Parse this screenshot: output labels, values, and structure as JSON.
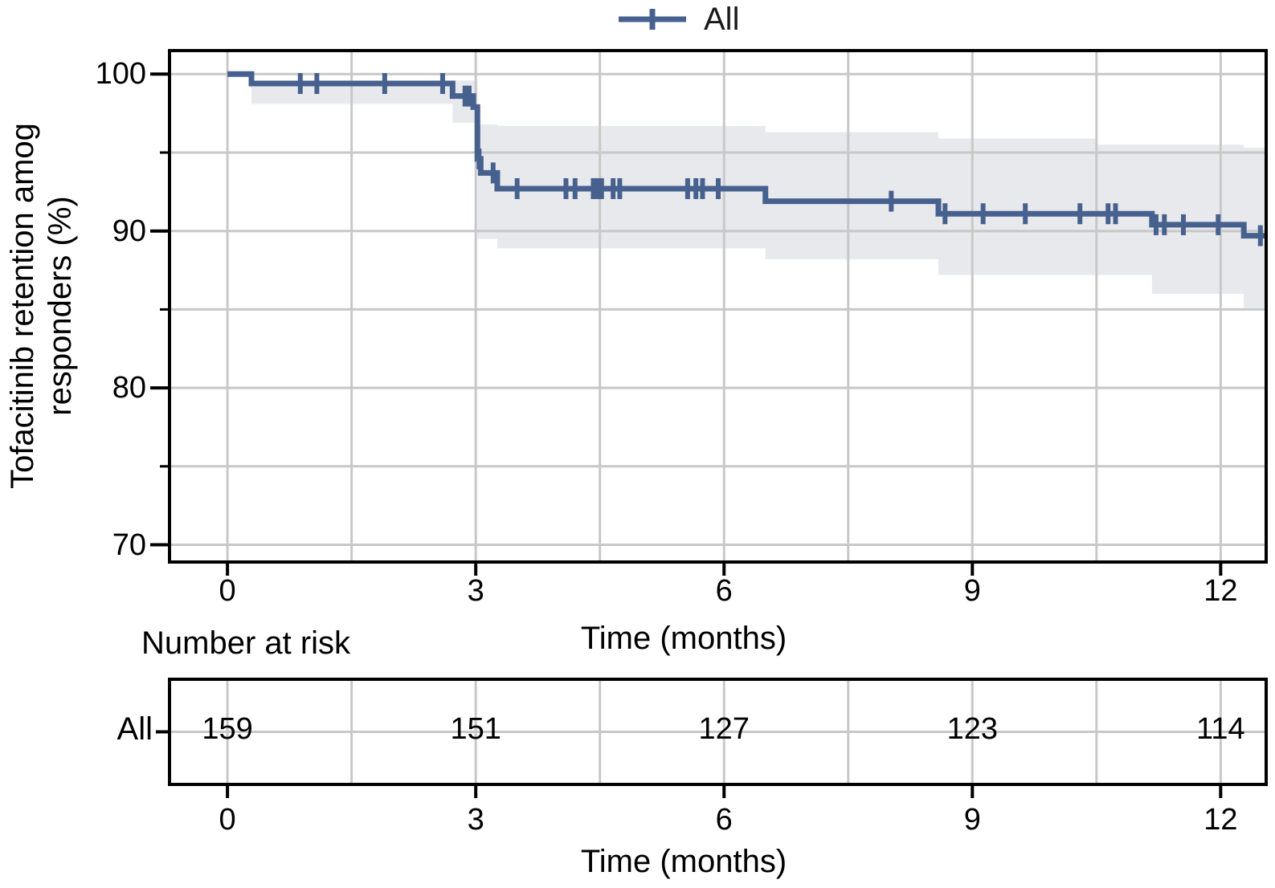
{
  "chart_data": {
    "type": "line",
    "subtype": "kaplan-meier-survival",
    "title": "",
    "ylabel": "Tofacitinib retention amog responders (%)",
    "ylabel_lines": [
      "Tofacitinib retention amog",
      "responders (%)"
    ],
    "xlabel": "Time (months)",
    "legend": {
      "position": "top",
      "entries": [
        {
          "label": "All",
          "color": "#47618f",
          "marker": "plus"
        }
      ]
    },
    "grid": true,
    "xlim": [
      -0.7,
      12.55
    ],
    "ylim": [
      68.9,
      101.5
    ],
    "x_tick_values": [
      0,
      3,
      6,
      9,
      12
    ],
    "x_tick_labels": [
      "0",
      "3",
      "6",
      "9",
      "12"
    ],
    "y_tick_values": [
      100,
      90,
      80,
      70
    ],
    "y_tick_labels": [
      "100",
      "90",
      "80",
      "70"
    ],
    "y_minor_tick_values": [
      95,
      85,
      75
    ],
    "x_grid_values": [
      0,
      1.5,
      3,
      4.5,
      6,
      7.5,
      9,
      10.5,
      12
    ],
    "y_grid_values": [
      70,
      75,
      80,
      85,
      90,
      95,
      100
    ],
    "colors": {
      "line": "#47618f",
      "ci_band": "#e8e9ec",
      "grid": "#c8c8c8",
      "frame": "#000000"
    },
    "series": [
      {
        "name": "All",
        "km_steps": [
          [
            0,
            100
          ],
          [
            0.29,
            99.4
          ],
          [
            2.72,
            98.6
          ],
          [
            2.97,
            97.9
          ],
          [
            3.02,
            94.6
          ],
          [
            3.06,
            93.7
          ],
          [
            3.26,
            92.7
          ],
          [
            6.5,
            91.9
          ],
          [
            8.59,
            91.1
          ],
          [
            11.17,
            90.4
          ],
          [
            12.28,
            89.7
          ]
        ],
        "end_time": 12.55,
        "censor_marks": [
          [
            0.88,
            99.4
          ],
          [
            1.08,
            99.4
          ],
          [
            1.9,
            99.4
          ],
          [
            2.6,
            99.4
          ],
          [
            2.87,
            98.6
          ],
          [
            2.92,
            98.6
          ],
          [
            3.04,
            94.6
          ],
          [
            3.21,
            93.7
          ],
          [
            3.5,
            92.7
          ],
          [
            4.09,
            92.7
          ],
          [
            4.2,
            92.7
          ],
          [
            4.42,
            92.7
          ],
          [
            4.47,
            92.7
          ],
          [
            4.52,
            92.7
          ],
          [
            4.66,
            92.7
          ],
          [
            4.74,
            92.7
          ],
          [
            5.56,
            92.7
          ],
          [
            5.66,
            92.7
          ],
          [
            5.74,
            92.7
          ],
          [
            5.93,
            92.7
          ],
          [
            8.02,
            91.9
          ],
          [
            8.67,
            91.1
          ],
          [
            9.13,
            91.1
          ],
          [
            9.64,
            91.1
          ],
          [
            10.3,
            91.1
          ],
          [
            10.64,
            91.1
          ],
          [
            10.73,
            91.1
          ],
          [
            11.22,
            90.4
          ],
          [
            11.32,
            90.4
          ],
          [
            11.55,
            90.4
          ],
          [
            11.97,
            90.4
          ],
          [
            12.48,
            89.7
          ]
        ],
        "ci_band": [
          [
            0.29,
            2.72,
            98.1,
            99.6
          ],
          [
            2.72,
            3.02,
            96.9,
            99.6
          ],
          [
            3.02,
            3.26,
            89.5,
            96.8
          ],
          [
            3.26,
            6.5,
            88.9,
            96.7
          ],
          [
            6.5,
            8.59,
            88.2,
            96.3
          ],
          [
            8.59,
            10.5,
            87.2,
            95.9
          ],
          [
            10.5,
            11.17,
            87.2,
            95.5
          ],
          [
            11.17,
            12.28,
            86.0,
            95.5
          ],
          [
            12.28,
            12.55,
            85.1,
            95.3
          ]
        ]
      }
    ],
    "number_at_risk": {
      "header": "Number at risk",
      "xlabel": "Time (months)",
      "x_tick_labels": [
        "0",
        "3",
        "6",
        "9",
        "12"
      ],
      "rows": [
        {
          "label": "All",
          "values": [
            "159",
            "151",
            "127",
            "123",
            "114"
          ]
        }
      ]
    }
  }
}
